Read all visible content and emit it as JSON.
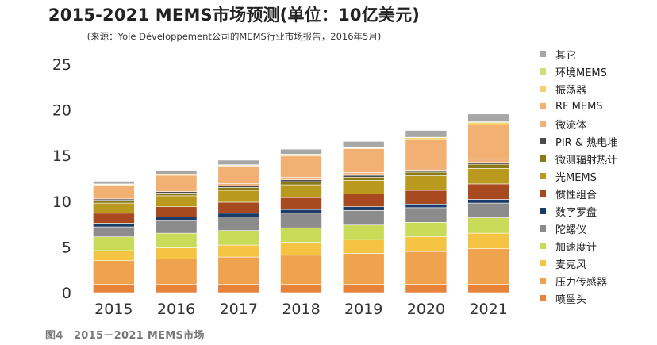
{
  "chart_data": {
    "type": "bar",
    "stacked": true,
    "title": "2015-2021 MEMS市场预测(单位：10亿美元)",
    "subtitle": "(来源：Yole Développement公司的MEMS行业市场报告，2016年5月)",
    "categories": [
      "2015",
      "2016",
      "2017",
      "2018",
      "2019",
      "2020",
      "2021"
    ],
    "ylim": [
      0,
      25
    ],
    "yticks": [
      0,
      5,
      10,
      15,
      20,
      25
    ],
    "grid": false,
    "legend": "right",
    "legend_order": "top-to-bottom, reverse of stacking",
    "series": [
      {
        "name": "喷墨头",
        "color": "#e8833a",
        "values": [
          0.9,
          0.9,
          0.9,
          0.9,
          0.9,
          0.9,
          0.9
        ]
      },
      {
        "name": "压力传感器",
        "color": "#efa34f",
        "values": [
          2.6,
          2.8,
          3.0,
          3.2,
          3.4,
          3.6,
          3.9
        ]
      },
      {
        "name": "麦克风",
        "color": "#f5c443",
        "values": [
          1.1,
          1.2,
          1.3,
          1.4,
          1.5,
          1.6,
          1.7
        ]
      },
      {
        "name": "加速度计",
        "color": "#c9dc5a",
        "values": [
          1.5,
          1.6,
          1.6,
          1.6,
          1.6,
          1.6,
          1.7
        ]
      },
      {
        "name": "陀螺仪",
        "color": "#8c8c8c",
        "values": [
          1.1,
          1.4,
          1.5,
          1.6,
          1.6,
          1.6,
          1.6
        ]
      },
      {
        "name": "数字罗盘",
        "color": "#1b3c6b",
        "values": [
          0.4,
          0.4,
          0.4,
          0.4,
          0.4,
          0.4,
          0.4
        ]
      },
      {
        "name": "惯性组合",
        "color": "#a8491f",
        "values": [
          1.1,
          1.1,
          1.2,
          1.3,
          1.4,
          1.5,
          1.7
        ]
      },
      {
        "name": "光MEMS",
        "color": "#b99a1e",
        "values": [
          1.1,
          1.2,
          1.3,
          1.4,
          1.5,
          1.6,
          1.7
        ]
      },
      {
        "name": "微测辐射热计",
        "color": "#8a7a1a",
        "values": [
          0.3,
          0.3,
          0.3,
          0.35,
          0.35,
          0.4,
          0.45
        ]
      },
      {
        "name": "PIR & 热电堆",
        "color": "#4a4a4a",
        "values": [
          0.15,
          0.15,
          0.2,
          0.2,
          0.2,
          0.2,
          0.2
        ]
      },
      {
        "name": "微流体",
        "color": "#f0b37b",
        "values": [
          0.2,
          0.2,
          0.25,
          0.3,
          0.3,
          0.35,
          0.4
        ]
      },
      {
        "name": "RF MEMS",
        "color": "#f2b172",
        "values": [
          1.3,
          1.6,
          1.9,
          2.3,
          2.6,
          3.0,
          3.7
        ]
      },
      {
        "name": "振荡器",
        "color": "#f7d070",
        "values": [
          0.1,
          0.1,
          0.1,
          0.15,
          0.15,
          0.2,
          0.25
        ]
      },
      {
        "name": "环境MEMS",
        "color": "#cfe07a",
        "values": [
          0.05,
          0.05,
          0.05,
          0.05,
          0.05,
          0.05,
          0.1
        ]
      },
      {
        "name": "其它",
        "color": "#a7a7a7",
        "values": [
          0.3,
          0.4,
          0.5,
          0.55,
          0.6,
          0.75,
          0.85
        ]
      }
    ]
  },
  "caption": "图4　2015－2021 MEMS市场"
}
